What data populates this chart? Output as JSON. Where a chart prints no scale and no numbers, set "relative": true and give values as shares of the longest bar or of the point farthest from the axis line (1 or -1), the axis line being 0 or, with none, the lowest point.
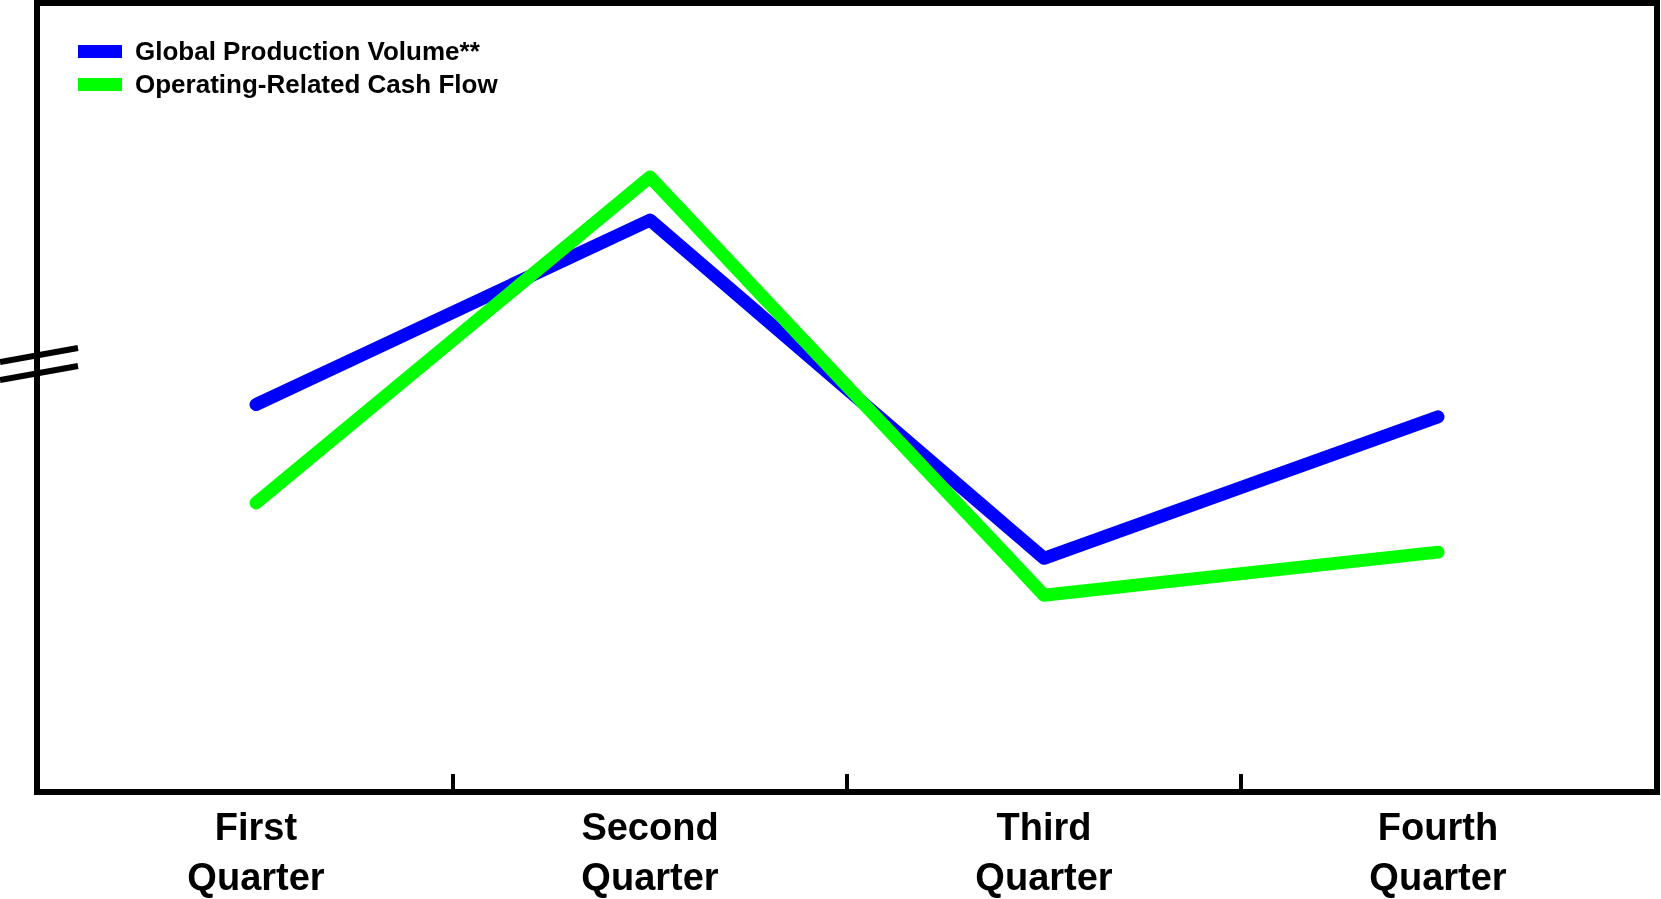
{
  "chart_data": {
    "type": "line",
    "relative": true,
    "categories": [
      "First Quarter",
      "Second Quarter",
      "Third Quarter",
      "Fourth Quarter"
    ],
    "series": [
      {
        "name": "Global Production Volume**",
        "color": "#0000ff",
        "values": [
          0.63,
          0.93,
          0.38,
          0.61
        ]
      },
      {
        "name": "Operating-Related Cash Flow",
        "color": "#00ff00",
        "values": [
          0.47,
          1,
          0.32,
          0.39
        ]
      }
    ],
    "legend": "top left",
    "marker": "none",
    "line_style": "solid"
  }
}
